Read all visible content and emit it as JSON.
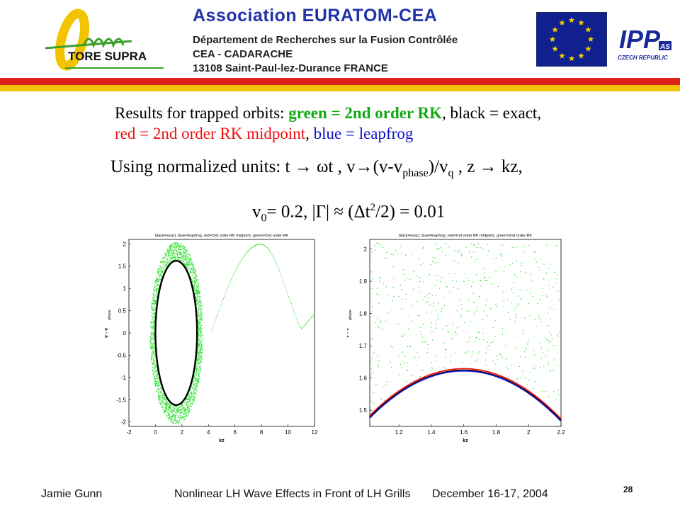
{
  "header": {
    "association": "Association  EURATOM-CEA",
    "line1": "Département de Recherches sur la Fusion Contrôlée",
    "line2": "CEA - CADARACHE",
    "line3": "13108 Saint-Paul-lez-Durance   FRANCE",
    "tore_supra": "TORE SUPRA",
    "ipp_logo_text": "IPP",
    "ipp_logo_sub": "AS",
    "ipp_logo_caption": "CZECH REPUBLIC",
    "colors": {
      "red": "#e0201a",
      "yellow": "#f2c400",
      "blue": "#2233aa",
      "eu_blue": "#10208f",
      "logo_green": "#3aa02a"
    }
  },
  "title": {
    "prefix": "Results for trapped orbits: ",
    "green": "green = 2nd order RK",
    "sep1": ", black = exact,",
    "red": "red = 2nd order RK midpoint",
    "sep2": ", ",
    "blue": "blue = leapfrog"
  },
  "units": {
    "text1": "Using normalized units:  t ",
    "arrow": "→",
    "text2": " ωt , v",
    "text3": "(v-v",
    "sub_phase": "phase",
    "text4": ")/v",
    "sub_q": "q",
    "text5": "  , z ",
    "text6": " kz,"
  },
  "params": {
    "v": "v",
    "sub0": "0",
    "eq": "= 0.2,  |Γ| ≈ (Δt",
    "sup2": "2",
    "rest": "/2) = 0.01"
  },
  "footer": {
    "author": "Jamie Gunn",
    "title": "Nonlinear LH Wave Effects in Front of LH Grills",
    "date": "December 16-17, 2004",
    "page": "28"
  },
  "chart_data": [
    {
      "type": "scatter",
      "title": "black=exact, blue=leapfrog, red=2nd order RK midpoint, green=2nd order RK",
      "xlabel": "kz",
      "ylabel": "v - v",
      "ylabel_sub": "phase",
      "xlim": [
        -2,
        12
      ],
      "ylim": [
        -2.1,
        2.1
      ],
      "xticks": [
        "-2",
        "0",
        "2",
        "4",
        "6",
        "8",
        "10",
        "12"
      ],
      "yticks": [
        "-2",
        "-1.5",
        "-1",
        "-0.5",
        "0",
        "0.5",
        "1",
        "1.5",
        "2"
      ],
      "grid": false,
      "series": [
        {
          "name": "exact",
          "color": "#000000",
          "note": "closed trapped orbit, center kz≈1.57, half-width ≈1.57, |v| max ≈1.63"
        },
        {
          "name": "2nd order RK",
          "color": "#22dd22",
          "note": "spiraling outward to |v|≈2, escapes to untrapped orbit, minimum v≈0.1 at kz≈11"
        }
      ]
    },
    {
      "type": "scatter",
      "title": "black=exact, blue=leapfrog, red=2nd order RK midpoint, green=2nd order RK",
      "xlabel": "kz",
      "ylabel": "v - v",
      "ylabel_sub": "phase",
      "xlim": [
        1.02,
        2.2
      ],
      "ylim": [
        1.45,
        2.03
      ],
      "xticks": [
        "1.2",
        "1.4",
        "1.6",
        "1.8",
        "2",
        "2.2"
      ],
      "yticks": [
        "1.5",
        "1.6",
        "1.7",
        "1.8",
        "1.9",
        "2"
      ],
      "grid": false,
      "series": [
        {
          "name": "exact",
          "color": "#000000"
        },
        {
          "name": "leapfrog",
          "color": "#1a1acc"
        },
        {
          "name": "2nd order RK midpoint",
          "color": "#ee1111"
        },
        {
          "name": "2nd order RK",
          "color": "#22dd22",
          "note": "scattered points between v≈1.55 and 2.0"
        }
      ]
    }
  ]
}
